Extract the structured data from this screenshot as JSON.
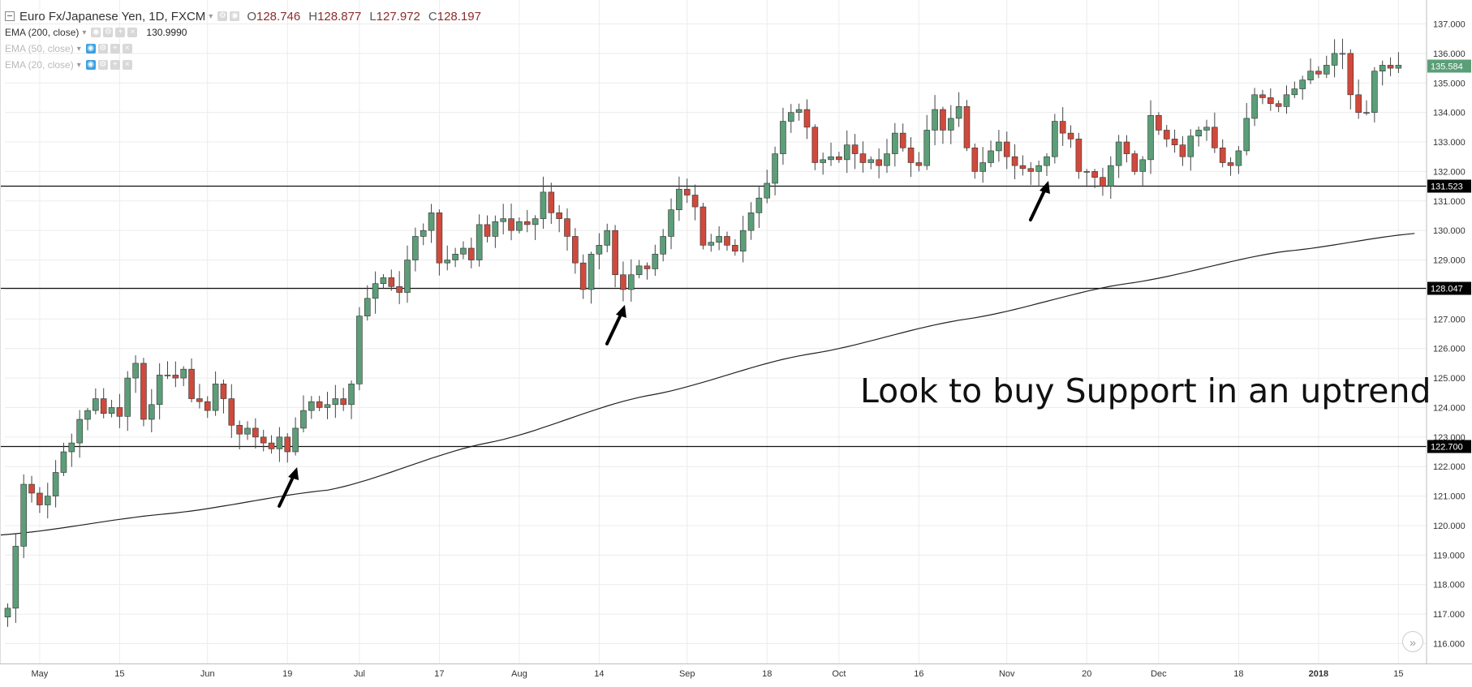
{
  "header": {
    "symbol": "Euro Fx/Japanese Yen, 1D, FXCM",
    "o_label": "O",
    "o_value": "128.746",
    "h_label": "H",
    "h_value": "128.877",
    "l_label": "L",
    "l_value": "127.972",
    "c_label": "C",
    "c_value": "128.197"
  },
  "indicators": [
    {
      "label": "EMA (200, close)",
      "value": "130.9990"
    },
    {
      "label": "EMA (50, close)"
    },
    {
      "label": "EMA (20, close)"
    }
  ],
  "annotation": "Look to buy Support in an uptrend",
  "colors": {
    "up": "#5b9e78",
    "down": "#cf4a3c",
    "text": "#333333",
    "background": "#ffffff"
  },
  "icons": {
    "collapse": "square-minus-icon",
    "scroll": "double-chevron-right-icon"
  },
  "chart_data": {
    "type": "candlestick",
    "ylim": [
      115.6,
      137.6
    ],
    "y_ticks": [
      "116.000",
      "117.000",
      "118.000",
      "119.000",
      "120.000",
      "121.000",
      "122.000",
      "123.000",
      "124.000",
      "125.000",
      "126.000",
      "127.000",
      "128.000",
      "129.000",
      "130.000",
      "131.000",
      "132.000",
      "133.000",
      "134.000",
      "135.000",
      "136.000",
      "137.000"
    ],
    "x_ticks": [
      {
        "label": "May",
        "i": 4
      },
      {
        "label": "15",
        "i": 14
      },
      {
        "label": "Jun",
        "i": 25
      },
      {
        "label": "19",
        "i": 35
      },
      {
        "label": "Jul",
        "i": 44
      },
      {
        "label": "17",
        "i": 54
      },
      {
        "label": "Aug",
        "i": 64
      },
      {
        "label": "14",
        "i": 74
      },
      {
        "label": "Sep",
        "i": 85
      },
      {
        "label": "18",
        "i": 95
      },
      {
        "label": "Oct",
        "i": 104
      },
      {
        "label": "16",
        "i": 114
      },
      {
        "label": "Nov",
        "i": 125
      },
      {
        "label": "20",
        "i": 135
      },
      {
        "label": "Dec",
        "i": 144
      },
      {
        "label": "18",
        "i": 154
      },
      {
        "label": "2018",
        "i": 164
      },
      {
        "label": "15",
        "i": 174
      }
    ],
    "support_lines": [
      {
        "price": 131.523,
        "label": "131.523"
      },
      {
        "price": 128.047,
        "label": "128.047"
      },
      {
        "price": 122.7,
        "label": "122.700"
      }
    ],
    "last_price": {
      "price": 135.584,
      "label": "135.584"
    },
    "arrows_at": [
      36,
      77,
      130
    ],
    "ema200": [
      [
        0,
        119.7
      ],
      [
        20,
        120.4
      ],
      [
        40,
        121.2
      ],
      [
        60,
        122.8
      ],
      [
        80,
        124.4
      ],
      [
        100,
        125.8
      ],
      [
        120,
        127.0
      ],
      [
        140,
        128.2
      ],
      [
        160,
        129.3
      ],
      [
        176,
        129.9
      ]
    ],
    "closes": [
      117.2,
      119.3,
      121.4,
      121.1,
      120.7,
      121.0,
      121.8,
      122.5,
      122.8,
      123.6,
      123.9,
      124.3,
      123.8,
      124.0,
      123.7,
      125.0,
      125.5,
      123.6,
      124.1,
      125.1,
      125.1,
      125.0,
      125.3,
      124.3,
      124.2,
      123.9,
      124.8,
      124.3,
      123.4,
      123.1,
      123.3,
      123.0,
      122.8,
      122.6,
      123.0,
      122.5,
      123.3,
      123.9,
      124.2,
      124.0,
      124.1,
      124.3,
      124.1,
      124.8,
      127.1,
      127.7,
      128.2,
      128.4,
      128.1,
      127.9,
      129.0,
      129.8,
      130.0,
      130.6,
      128.9,
      129.0,
      129.2,
      129.4,
      129.0,
      130.2,
      129.8,
      130.3,
      130.4,
      130.0,
      130.3,
      130.2,
      130.4,
      131.3,
      130.6,
      130.4,
      129.8,
      128.9,
      128.0,
      129.2,
      129.5,
      130.0,
      128.5,
      128.0,
      128.5,
      128.8,
      128.7,
      129.2,
      129.8,
      130.7,
      131.4,
      131.2,
      130.8,
      129.5,
      129.6,
      129.8,
      129.5,
      129.3,
      130.0,
      130.6,
      131.1,
      131.6,
      132.6,
      133.7,
      134.0,
      134.1,
      133.5,
      132.3,
      132.4,
      132.5,
      132.4,
      132.9,
      132.6,
      132.3,
      132.4,
      132.2,
      132.6,
      133.3,
      132.8,
      132.3,
      132.2,
      133.4,
      134.1,
      133.4,
      133.8,
      134.2,
      132.8,
      132.0,
      132.3,
      132.7,
      133.0,
      132.5,
      132.2,
      132.1,
      132.0,
      132.2,
      132.5,
      133.7,
      133.3,
      133.1,
      132.0,
      132.0,
      131.8,
      131.5,
      132.2,
      133.0,
      132.6,
      132.0,
      132.4,
      133.9,
      133.4,
      133.1,
      132.9,
      132.5,
      133.2,
      133.4,
      133.5,
      132.8,
      132.3,
      132.2,
      132.7,
      133.8,
      134.6,
      134.5,
      134.3,
      134.2,
      134.6,
      134.8,
      135.1,
      135.4,
      135.3,
      135.6,
      136.0,
      136.0,
      134.6,
      134.0,
      134.0,
      135.4,
      135.6,
      135.5,
      135.6
    ]
  }
}
